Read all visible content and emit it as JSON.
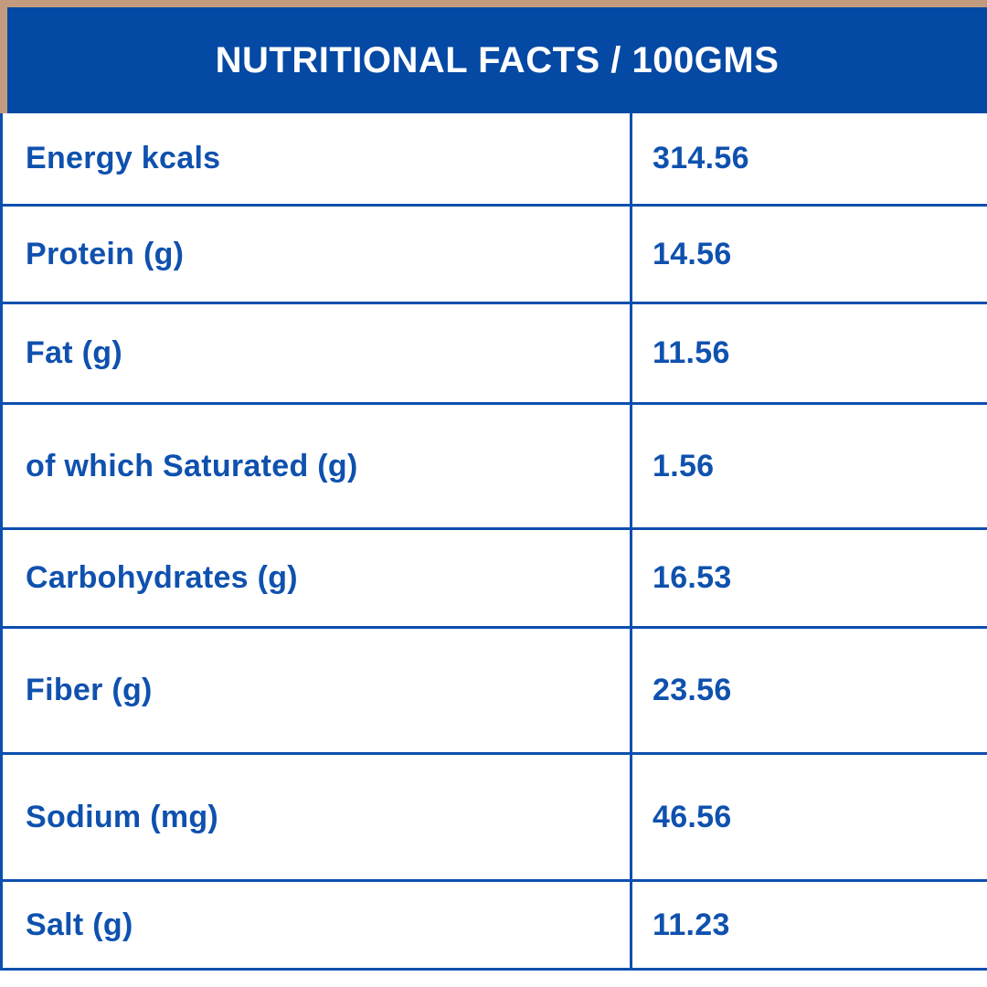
{
  "header": {
    "title": "NUTRITIONAL FACTS / 100GMS"
  },
  "table": {
    "rows": [
      {
        "label": "Energy kcals",
        "value": "314.56"
      },
      {
        "label": "Protein (g)",
        "value": "14.56"
      },
      {
        "label": "Fat (g)",
        "value": "11.56"
      },
      {
        "label": "of which Saturated (g)",
        "value": "1.56"
      },
      {
        "label": "Carbohydrates (g)",
        "value": "16.53"
      },
      {
        "label": "Fiber (g)",
        "value": "23.56"
      },
      {
        "label": "Sodium (mg)",
        "value": "46.56"
      },
      {
        "label": "Salt (g)",
        "value": "11.23"
      }
    ]
  },
  "colors": {
    "frame_tan": "#c29b7e",
    "header_background": "#0449a4",
    "border_blue": "#0d4fae",
    "text_blue": "#0f51ae",
    "header_text": "#ffffff",
    "page_background": "#ffffff"
  },
  "chart_data": {
    "type": "table",
    "title": "NUTRITIONAL FACTS / 100GMS",
    "categories": [
      "Energy kcals",
      "Protein (g)",
      "Fat (g)",
      "of which Saturated (g)",
      "Carbohydrates (g)",
      "Fiber (g)",
      "Sodium (mg)",
      "Salt (g)"
    ],
    "values": [
      314.56,
      14.56,
      11.56,
      1.56,
      16.53,
      23.56,
      46.56,
      11.23
    ]
  }
}
